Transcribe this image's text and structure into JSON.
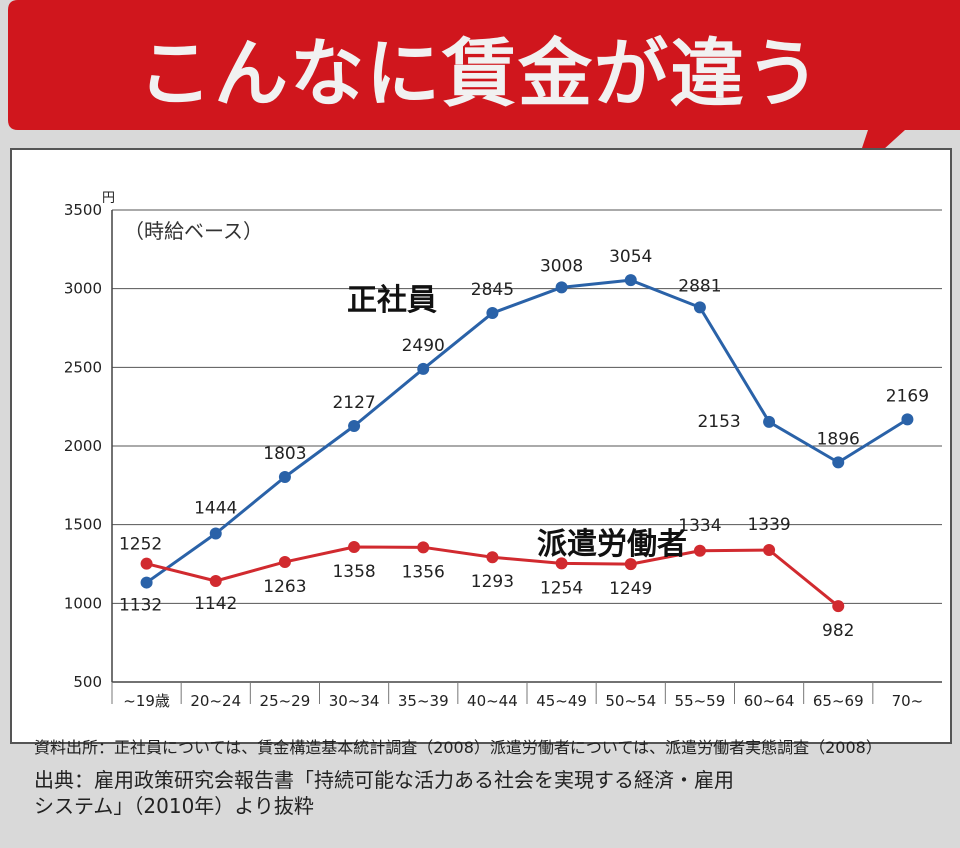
{
  "title": "こんなに賃金が違う",
  "chart_data": {
    "type": "line",
    "unit_label": "円",
    "subtitle": "（時給ベース）",
    "categories": [
      "~19歳",
      "20~24",
      "25~29",
      "30~34",
      "35~39",
      "40~44",
      "45~49",
      "50~54",
      "55~59",
      "60~64",
      "65~69",
      "70~"
    ],
    "ylim": [
      500,
      3500
    ],
    "yticks": [
      500,
      1000,
      1500,
      2000,
      2500,
      3000,
      3500
    ],
    "grid": true,
    "series": [
      {
        "name": "正社員",
        "color": "#2a62a8",
        "values": [
          1132,
          1444,
          1803,
          2127,
          2490,
          2845,
          3008,
          3054,
          2881,
          2153,
          1896,
          2169
        ]
      },
      {
        "name": "派遣労働者",
        "color": "#d12a2f",
        "values": [
          1252,
          1142,
          1263,
          1358,
          1356,
          1293,
          1254,
          1249,
          1334,
          1339,
          982,
          null
        ]
      }
    ]
  },
  "footer": {
    "source": "資料出所：正社員については、賃金構造基本統計調査（2008）派遣労働者については、派遣労働者実態調査（2008）",
    "reference_line1": "出典：雇用政策研究会報告書「持続可能な活力ある社会を実現する経済・雇用",
    "reference_line2": "システム」（2010年）より抜粋"
  },
  "colors": {
    "banner": "#d0161d",
    "title_text": "#f1f1f1",
    "grid": "#555555"
  }
}
